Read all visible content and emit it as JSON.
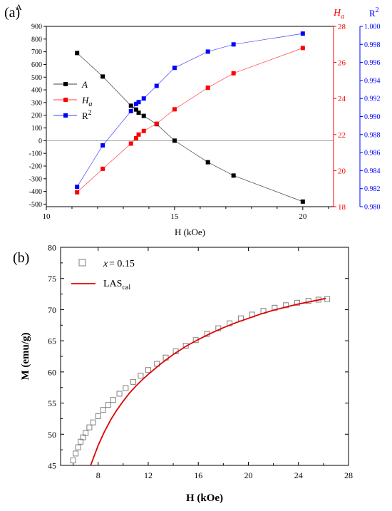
{
  "chart_data": [
    {
      "panel_label": "(a)",
      "type": "scatter",
      "xlabel": "H (kOe)",
      "xlim": [
        10,
        21.2
      ],
      "xticks": [
        10,
        15,
        20
      ],
      "axes": {
        "left": {
          "label": "A",
          "color": "#000000",
          "lim": [
            -520,
            900
          ],
          "ticks": [
            -500,
            -400,
            -300,
            -200,
            -100,
            0,
            100,
            200,
            300,
            400,
            500,
            600,
            700,
            800,
            900
          ]
        },
        "right1": {
          "label": "H",
          "label_sub": "a",
          "color": "#ff0000",
          "lim": [
            18,
            28
          ],
          "ticks": [
            18,
            20,
            22,
            24,
            26,
            28
          ]
        },
        "right2": {
          "label": "R",
          "label_sup": "2",
          "color": "#0000ff",
          "lim": [
            0.98,
            1.0
          ],
          "ticks": [
            "0.980",
            "0.982",
            "0.984",
            "0.986",
            "0.988",
            "0.990",
            "0.992",
            "0.994",
            "0.996",
            "0.998",
            "1.000"
          ]
        }
      },
      "zero_line": 0,
      "legend_position": "left",
      "series": [
        {
          "name": "A",
          "color": "#000000",
          "axis": "left",
          "x": [
            11.2,
            12.2,
            13.3,
            13.5,
            13.6,
            13.8,
            14.3,
            15.0,
            16.3,
            17.3,
            20.0
          ],
          "y": [
            690,
            505,
            275,
            245,
            220,
            195,
            130,
            0,
            -170,
            -275,
            -480
          ]
        },
        {
          "name": "H",
          "name_sub": "a",
          "color": "#ff0000",
          "axis": "right1",
          "x": [
            11.2,
            12.2,
            13.3,
            13.5,
            13.6,
            13.8,
            14.3,
            15.0,
            16.3,
            17.3,
            20.0
          ],
          "y": [
            18.8,
            20.1,
            21.5,
            21.8,
            22.0,
            22.2,
            22.6,
            23.4,
            24.6,
            25.4,
            26.8
          ]
        },
        {
          "name": "R",
          "name_sup": "2",
          "color": "#0000ff",
          "axis": "right2",
          "x": [
            11.2,
            12.2,
            13.3,
            13.5,
            13.6,
            13.8,
            14.3,
            15.0,
            16.3,
            17.3,
            20.0
          ],
          "y": [
            0.9822,
            0.9868,
            0.9906,
            0.9914,
            0.9916,
            0.992,
            0.9934,
            0.9954,
            0.9972,
            0.998,
            0.9992
          ]
        }
      ]
    },
    {
      "panel_label": "(b)",
      "type": "scatter",
      "xlabel": "H (kOe)",
      "ylabel": "M (emu/g)",
      "xlim": [
        5,
        28
      ],
      "ylim": [
        45,
        80
      ],
      "xticks": [
        8,
        12,
        16,
        20,
        24,
        28
      ],
      "yticks": [
        45,
        50,
        55,
        60,
        65,
        70,
        75,
        80
      ],
      "legend_position": "top-left",
      "series": [
        {
          "name_prefix": "x",
          "name": " = 0.15",
          "style": "open-square",
          "color": "#808080",
          "x": [
            6.0,
            6.2,
            6.4,
            6.6,
            6.8,
            7.0,
            7.3,
            7.6,
            8.0,
            8.4,
            8.8,
            9.2,
            9.7,
            10.2,
            10.8,
            11.4,
            12.0,
            12.7,
            13.4,
            14.2,
            15.0,
            15.8,
            16.7,
            17.6,
            18.5,
            19.4,
            20.3,
            21.2,
            22.1,
            23.0,
            23.9,
            24.8,
            25.6,
            26.3
          ],
          "y": [
            45.8,
            46.9,
            47.9,
            48.8,
            49.5,
            50.2,
            51.1,
            51.9,
            52.9,
            53.9,
            54.7,
            55.5,
            56.5,
            57.4,
            58.4,
            59.4,
            60.3,
            61.3,
            62.3,
            63.3,
            64.2,
            65.1,
            66.1,
            67.0,
            67.8,
            68.6,
            69.2,
            69.8,
            70.3,
            70.7,
            71.1,
            71.4,
            71.6,
            71.7
          ]
        },
        {
          "name": "LAS",
          "name_sub": "cal",
          "style": "line",
          "color": "#e00000",
          "x": [
            7.4,
            8.0,
            8.5,
            9.0,
            9.5,
            10.0,
            10.5,
            11.0,
            11.5,
            12.0,
            13.0,
            14.0,
            15.0,
            16.0,
            17.0,
            18.0,
            19.0,
            20.0,
            21.0,
            22.0,
            23.0,
            24.0,
            25.0,
            26.2
          ],
          "y": [
            45.0,
            48.2,
            50.4,
            52.3,
            53.9,
            55.3,
            56.6,
            57.7,
            58.7,
            59.6,
            61.3,
            62.8,
            64.1,
            65.2,
            66.2,
            67.1,
            67.9,
            68.6,
            69.3,
            69.9,
            70.4,
            70.9,
            71.3,
            71.8
          ]
        }
      ]
    }
  ]
}
